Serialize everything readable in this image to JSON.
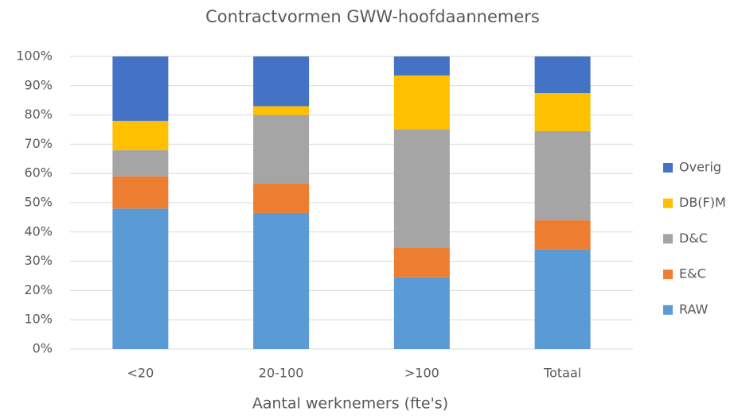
{
  "chart_data": {
    "type": "stacked_bar",
    "title": "Contractvormen GWW-hoofdaannemers",
    "x_label": "Aantal werknemers (fte's)",
    "categories": [
      "<20",
      "20-100",
      ">100",
      "Totaal"
    ],
    "series": [
      {
        "name": "RAW",
        "color": "#5b9bd5",
        "values": [
          48,
          46.5,
          24.5,
          34
        ]
      },
      {
        "name": "E&C",
        "color": "#ed7d31",
        "values": [
          11,
          10,
          10,
          10
        ]
      },
      {
        "name": "D&C",
        "color": "#a5a5a5",
        "values": [
          9,
          23.5,
          40.5,
          30.5
        ]
      },
      {
        "name": "DB(F)M",
        "color": "#ffc000",
        "values": [
          10,
          3,
          18.5,
          13
        ]
      },
      {
        "name": "Overig",
        "color": "#4472c4",
        "values": [
          22,
          17,
          6.5,
          12.5
        ]
      }
    ],
    "ylim": [
      0,
      100
    ],
    "yticks": [
      {
        "value": 0,
        "label": "0%"
      },
      {
        "value": 10,
        "label": "10%"
      },
      {
        "value": 20,
        "label": "20%"
      },
      {
        "value": 30,
        "label": "30%"
      },
      {
        "value": 40,
        "label": "40%"
      },
      {
        "value": 50,
        "label": "50%"
      },
      {
        "value": 60,
        "label": "60%"
      },
      {
        "value": 70,
        "label": "70%"
      },
      {
        "value": 80,
        "label": "80%"
      },
      {
        "value": 90,
        "label": "90%"
      },
      {
        "value": 100,
        "label": "100%"
      }
    ],
    "grid": true,
    "legend": "right"
  }
}
